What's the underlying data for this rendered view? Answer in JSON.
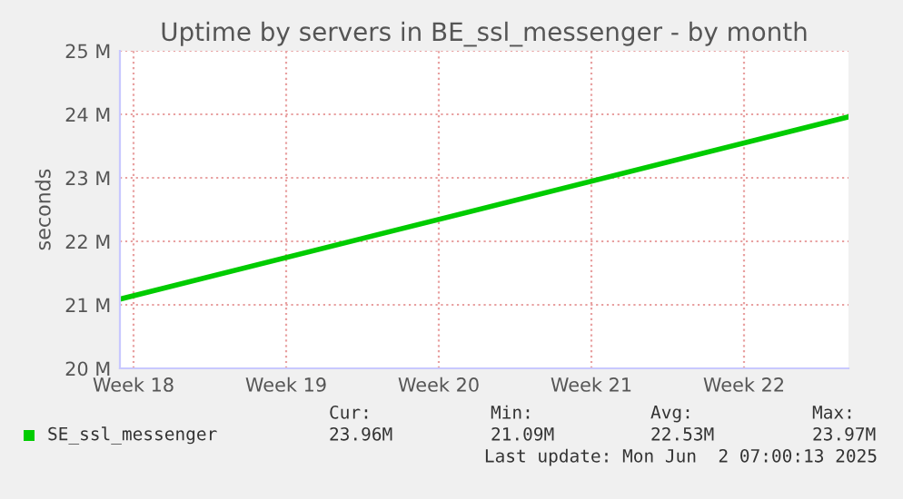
{
  "chart_data": {
    "type": "line",
    "title": "Uptime by servers in BE_ssl_messenger - by month",
    "ylabel": "seconds",
    "x": [
      "2025-04-29T21:00",
      "2025-06-02T07:00"
    ],
    "series": [
      {
        "name": "SE_ssl_messenger",
        "color": "#00cc00",
        "values": [
          21.09,
          23.96
        ]
      }
    ],
    "xlim": [
      "2025-04-29T21:00",
      "2025-06-02T07:00"
    ],
    "xticks": [
      {
        "value": "2025-04-30T12:00",
        "label": "Week 18"
      },
      {
        "value": "2025-05-07T12:00",
        "label": "Week 19"
      },
      {
        "value": "2025-05-14T12:00",
        "label": "Week 20"
      },
      {
        "value": "2025-05-21T12:00",
        "label": "Week 21"
      },
      {
        "value": "2025-05-28T12:00",
        "label": "Week 22"
      }
    ],
    "ylim": [
      20,
      25
    ],
    "yticks": [
      {
        "value": 20,
        "label": "20 M"
      },
      {
        "value": 21,
        "label": "21 M"
      },
      {
        "value": 22,
        "label": "22 M"
      },
      {
        "value": 23,
        "label": "23 M"
      },
      {
        "value": 24,
        "label": "24 M"
      },
      {
        "value": 25,
        "label": "25 M"
      }
    ],
    "grid": true,
    "legend": "bottom left",
    "annotations": [
      "Cur:",
      "23.96M",
      "Min:",
      "21.09M",
      "Avg:",
      "22.53M",
      "Max:",
      "23.97M",
      "Last update: Mon Jun  2 07:00:13 2025"
    ]
  }
}
